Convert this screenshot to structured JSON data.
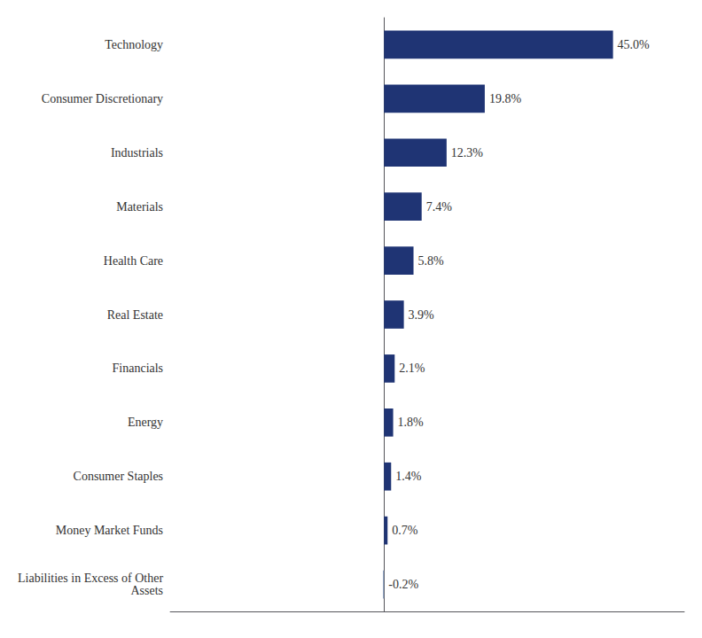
{
  "chart_data": {
    "type": "bar",
    "orientation": "horizontal",
    "categories": [
      "Technology",
      "Consumer Discretionary",
      "Industrials",
      "Materials",
      "Health Care",
      "Real Estate",
      "Financials",
      "Energy",
      "Consumer Staples",
      "Money Market Funds",
      "Liabilities in Excess of Other\nAssets"
    ],
    "values": [
      45.0,
      19.8,
      12.3,
      7.4,
      5.8,
      3.9,
      2.1,
      1.8,
      1.4,
      0.7,
      -0.2
    ],
    "value_labels": [
      "45.0%",
      "19.8%",
      "12.3%",
      "7.4%",
      "5.8%",
      "3.9%",
      "2.1%",
      "1.8%",
      "1.4%",
      "0.7%",
      "-0.2%"
    ],
    "colors": [
      "#1f3474",
      "#1f3474",
      "#1f3474",
      "#1f3474",
      "#1f3474",
      "#1f3474",
      "#1f3474",
      "#1f3474",
      "#1f3474",
      "#1f3474",
      "#8a9fc0"
    ],
    "xlim": [
      -42,
      59
    ],
    "data_labels": true,
    "tick_labels": "y",
    "grid": false
  }
}
